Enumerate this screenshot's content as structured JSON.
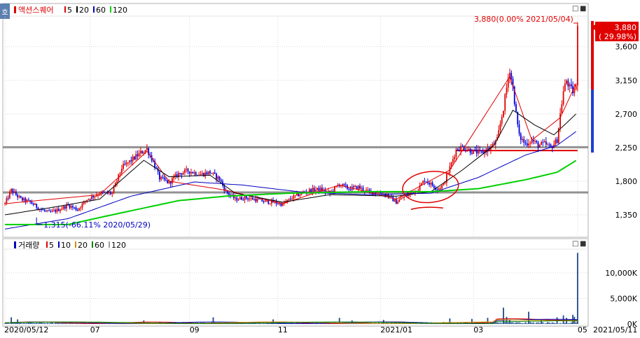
{
  "chart_data": [
    {
      "type": "candlestick",
      "title": "액션스퀘어",
      "legend": [
        {
          "label": "5",
          "color": "#e00000"
        },
        {
          "label": "20",
          "color": "#000000"
        },
        {
          "label": "60",
          "color": "#0000c0"
        },
        {
          "label": "120",
          "color": "#00d000"
        }
      ],
      "yticks": [
        1350,
        1800,
        2250,
        2700,
        3150,
        3600
      ],
      "ylim": [
        1060,
        4000
      ],
      "current_price": "3,880",
      "current_change": "( 29.98%)",
      "high_annotation": "3,880(0.00% 2021/05/04)",
      "low_annotation": "1,315(-66.11% 2020/05/29)",
      "horizontal_lines": [
        {
          "y": 2255,
          "color": "#808080"
        },
        {
          "y": 1650,
          "color": "#808080"
        },
        {
          "y": 2210,
          "color": "#e00000"
        }
      ],
      "price_keys": [
        [
          0,
          1500
        ],
        [
          4,
          1680
        ],
        [
          10,
          1560
        ],
        [
          16,
          1520
        ],
        [
          22,
          1430
        ],
        [
          28,
          1380
        ],
        [
          34,
          1420
        ],
        [
          40,
          1480
        ],
        [
          46,
          1420
        ],
        [
          52,
          1560
        ],
        [
          60,
          1640
        ],
        [
          68,
          1640
        ],
        [
          74,
          1980
        ],
        [
          80,
          2080
        ],
        [
          86,
          2180
        ],
        [
          90,
          2230
        ],
        [
          94,
          2060
        ],
        [
          98,
          1840
        ],
        [
          104,
          1780
        ],
        [
          110,
          1900
        ],
        [
          116,
          1940
        ],
        [
          124,
          1890
        ],
        [
          130,
          1920
        ],
        [
          136,
          1830
        ],
        [
          140,
          1660
        ],
        [
          146,
          1560
        ],
        [
          152,
          1580
        ],
        [
          158,
          1560
        ],
        [
          164,
          1530
        ],
        [
          170,
          1520
        ],
        [
          176,
          1490
        ],
        [
          182,
          1580
        ],
        [
          188,
          1640
        ],
        [
          194,
          1680
        ],
        [
          200,
          1690
        ],
        [
          206,
          1640
        ],
        [
          212,
          1760
        ],
        [
          218,
          1700
        ],
        [
          224,
          1720
        ],
        [
          230,
          1660
        ],
        [
          236,
          1650
        ],
        [
          242,
          1620
        ],
        [
          248,
          1520
        ],
        [
          252,
          1580
        ],
        [
          256,
          1620
        ],
        [
          262,
          1700
        ],
        [
          266,
          1820
        ],
        [
          270,
          1760
        ],
        [
          274,
          1700
        ],
        [
          278,
          1750
        ],
        [
          282,
          1980
        ],
        [
          286,
          2220
        ],
        [
          290,
          2260
        ],
        [
          296,
          2200
        ],
        [
          302,
          2180
        ],
        [
          308,
          2250
        ],
        [
          312,
          2350
        ],
        [
          316,
          2780
        ],
        [
          318,
          3050
        ],
        [
          320,
          3300
        ],
        [
          322,
          3050
        ],
        [
          324,
          2700
        ],
        [
          326,
          2400
        ],
        [
          330,
          2300
        ],
        [
          334,
          2350
        ],
        [
          338,
          2280
        ],
        [
          342,
          2300
        ],
        [
          346,
          2250
        ],
        [
          350,
          2350
        ],
        [
          352,
          2700
        ],
        [
          354,
          3000
        ],
        [
          356,
          3150
        ],
        [
          358,
          3050
        ],
        [
          360,
          3000
        ],
        [
          362,
          3050
        ],
        [
          363,
          3880
        ]
      ],
      "ma_keys": {
        "ma5": [
          [
            0,
            1500
          ],
          [
            60,
            1620
          ],
          [
            90,
            2200
          ],
          [
            104,
            1800
          ],
          [
            140,
            1680
          ],
          [
            176,
            1500
          ],
          [
            212,
            1750
          ],
          [
            248,
            1560
          ],
          [
            282,
            1950
          ],
          [
            320,
            3200
          ],
          [
            334,
            2350
          ],
          [
            352,
            2650
          ],
          [
            363,
            3150
          ]
        ],
        "ma20": [
          [
            0,
            1350
          ],
          [
            30,
            1450
          ],
          [
            60,
            1560
          ],
          [
            88,
            2080
          ],
          [
            104,
            1860
          ],
          [
            130,
            1880
          ],
          [
            146,
            1640
          ],
          [
            176,
            1520
          ],
          [
            206,
            1620
          ],
          [
            248,
            1600
          ],
          [
            270,
            1660
          ],
          [
            290,
            1950
          ],
          [
            310,
            2280
          ],
          [
            322,
            2750
          ],
          [
            336,
            2550
          ],
          [
            348,
            2420
          ],
          [
            363,
            2720
          ]
        ],
        "ma60": [
          [
            0,
            1160
          ],
          [
            40,
            1300
          ],
          [
            80,
            1600
          ],
          [
            120,
            1790
          ],
          [
            150,
            1750
          ],
          [
            190,
            1650
          ],
          [
            230,
            1620
          ],
          [
            270,
            1640
          ],
          [
            300,
            1850
          ],
          [
            330,
            2150
          ],
          [
            350,
            2280
          ],
          [
            363,
            2480
          ]
        ],
        "ma120": [
          [
            0,
            1220
          ],
          [
            40,
            1220
          ],
          [
            70,
            1360
          ],
          [
            110,
            1540
          ],
          [
            140,
            1600
          ],
          [
            180,
            1640
          ],
          [
            230,
            1660
          ],
          [
            270,
            1660
          ],
          [
            300,
            1700
          ],
          [
            330,
            1820
          ],
          [
            350,
            1920
          ],
          [
            363,
            2090
          ]
        ]
      },
      "xticks": [
        {
          "index": 0,
          "label": "2020/05/12"
        },
        {
          "index": 54,
          "label": "07"
        },
        {
          "index": 117,
          "label": "09"
        },
        {
          "index": 173,
          "label": "11"
        },
        {
          "index": 238,
          "label": "2021/01"
        },
        {
          "index": 297,
          "label": "03"
        },
        {
          "index": 363,
          "label": "05"
        }
      ],
      "last_date": "2021/05/11",
      "annotation": {
        "type": "hand-drawn-circle",
        "color": "#e00000",
        "index": 268,
        "y": 1760
      }
    },
    {
      "type": "bar",
      "title": "거래량",
      "legend": [
        {
          "label": "5",
          "color": "#e00000"
        },
        {
          "label": "10",
          "color": "#0000c0"
        },
        {
          "label": "20",
          "color": "#d09000"
        },
        {
          "label": "60",
          "color": "#008000"
        },
        {
          "label": "120",
          "color": "#a0a0a0"
        }
      ],
      "yticks": [
        {
          "value": 0,
          "label": "0K"
        },
        {
          "value": 5000,
          "label": "5,000K"
        },
        {
          "value": 10000,
          "label": "10,000K"
        }
      ],
      "ylim": [
        0,
        14500
      ],
      "spikes": [
        [
          4,
          1300
        ],
        [
          8,
          900
        ],
        [
          88,
          700
        ],
        [
          132,
          1300
        ],
        [
          170,
          900
        ],
        [
          212,
          1200
        ],
        [
          220,
          700
        ],
        [
          240,
          800
        ],
        [
          282,
          1100
        ],
        [
          296,
          1000
        ],
        [
          306,
          1200
        ],
        [
          316,
          3200
        ],
        [
          318,
          1400
        ],
        [
          320,
          900
        ],
        [
          332,
          2400
        ],
        [
          340,
          900
        ],
        [
          350,
          1300
        ],
        [
          354,
          1700
        ],
        [
          356,
          1200
        ],
        [
          360,
          1800
        ],
        [
          361,
          1400
        ],
        [
          363,
          13900
        ]
      ]
    }
  ],
  "window_controls": {
    "restore": "□",
    "close": "■"
  },
  "side_tab": "호"
}
